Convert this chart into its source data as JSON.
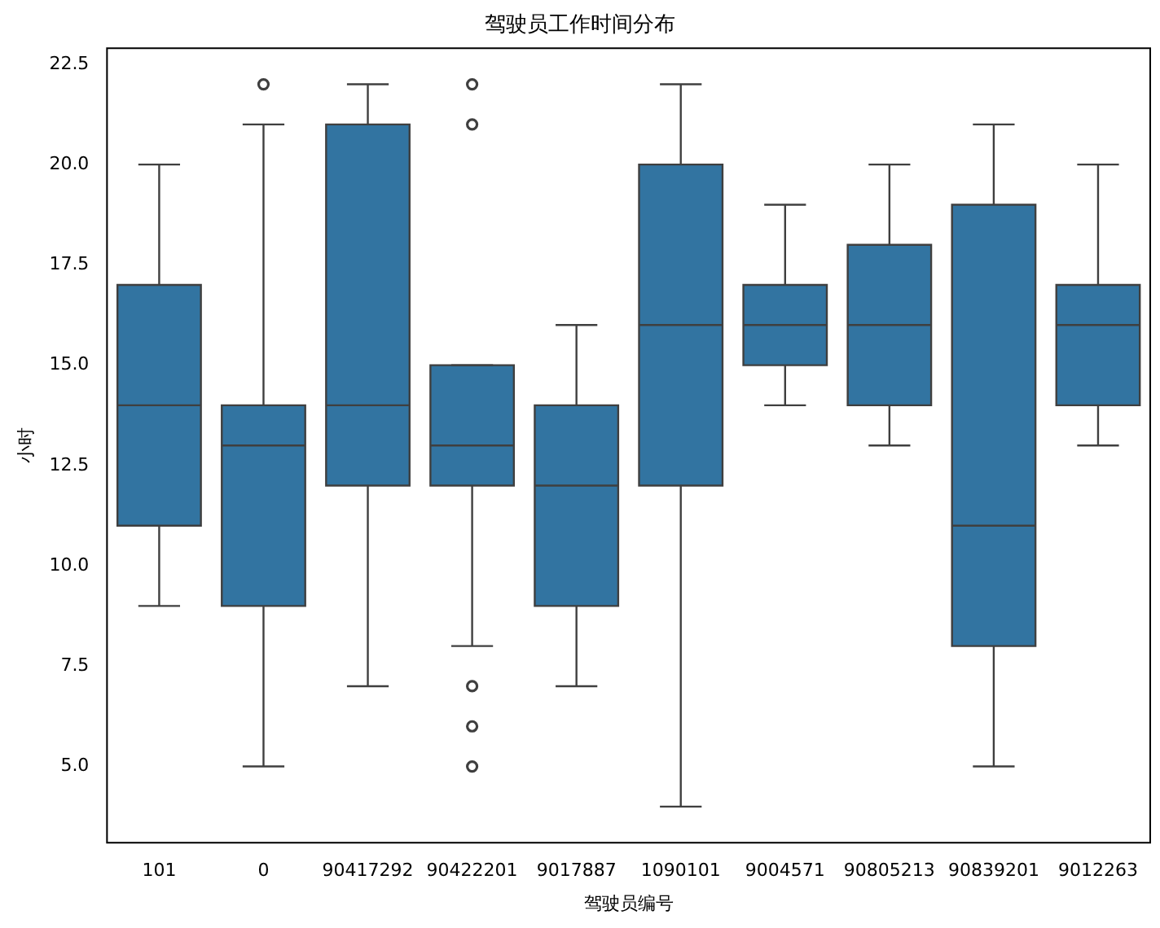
{
  "chart_data": {
    "type": "box",
    "title": "驾驶员工作时间分布",
    "xlabel": "驾驶员编号",
    "ylabel": "小时",
    "color": "#3274a1",
    "categories": [
      "101",
      "0",
      "90417292",
      "90422201",
      "9017887",
      "1090101",
      "9004571",
      "90805213",
      "90839201",
      "9012263"
    ],
    "boxes": [
      {
        "low": 9,
        "q1": 11,
        "median": 14,
        "q3": 17,
        "high": 20
      },
      {
        "low": 5,
        "q1": 9,
        "median": 13,
        "q3": 14,
        "high": 21,
        "outliers": [
          22
        ]
      },
      {
        "low": 7,
        "q1": 12,
        "median": 14,
        "q3": 21,
        "high": 22
      },
      {
        "low": 8,
        "q1": 12,
        "median": 13,
        "q3": 15,
        "high": 15,
        "outliers": [
          21,
          22,
          7,
          6,
          5
        ]
      },
      {
        "low": 7,
        "q1": 9,
        "median": 12,
        "q3": 14,
        "high": 16
      },
      {
        "low": 4,
        "q1": 12,
        "median": 16,
        "q3": 20,
        "high": 22
      },
      {
        "low": 14,
        "q1": 15,
        "median": 16,
        "q3": 17,
        "high": 19
      },
      {
        "low": 13,
        "q1": 14,
        "median": 16,
        "q3": 18,
        "high": 20
      },
      {
        "low": 5,
        "q1": 8,
        "median": 11,
        "q3": 19,
        "high": 21
      },
      {
        "low": 13,
        "q1": 14,
        "median": 16,
        "q3": 17,
        "high": 20
      }
    ],
    "ylim": [
      3.1,
      22.9
    ],
    "yticks": [
      {
        "value": 5,
        "label": "5.0"
      },
      {
        "value": 7.5,
        "label": "7.5"
      },
      {
        "value": 10,
        "label": "10.0"
      },
      {
        "value": 12.5,
        "label": "12.5"
      },
      {
        "value": 15,
        "label": "15.0"
      },
      {
        "value": 17.5,
        "label": "17.5"
      },
      {
        "value": 20,
        "label": "20.0"
      },
      {
        "value": 22.5,
        "label": "22.5"
      }
    ],
    "grid": false,
    "legend": false
  }
}
